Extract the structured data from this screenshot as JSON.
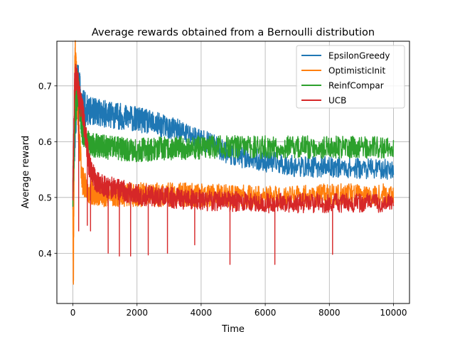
{
  "chart_data": {
    "type": "line",
    "title": "Average rewards obtained from a Bernoulli distribution",
    "xlabel": "Time",
    "ylabel": "Average reward",
    "xlim": [
      -500,
      10500
    ],
    "ylim": [
      0.31,
      0.78
    ],
    "xticks": [
      0,
      2000,
      4000,
      6000,
      8000,
      10000
    ],
    "xtick_labels": [
      "0",
      "2000",
      "4000",
      "6000",
      "8000",
      "10000"
    ],
    "yticks": [
      0.4,
      0.5,
      0.6,
      0.7
    ],
    "ytick_labels": [
      "0.4",
      "0.5",
      "0.6",
      "0.7"
    ],
    "grid": true,
    "legend_position": "top-right",
    "series": [
      {
        "name": "EpsilonGreedy",
        "color": "#1f77b4",
        "mean": [
          [
            0,
            0.52
          ],
          [
            60,
            0.62
          ],
          [
            150,
            0.71
          ],
          [
            300,
            0.66
          ],
          [
            500,
            0.655
          ],
          [
            1000,
            0.65
          ],
          [
            1500,
            0.645
          ],
          [
            2000,
            0.64
          ],
          [
            3000,
            0.625
          ],
          [
            4000,
            0.605
          ],
          [
            5000,
            0.575
          ],
          [
            6000,
            0.565
          ],
          [
            7000,
            0.555
          ],
          [
            8000,
            0.555
          ],
          [
            9000,
            0.552
          ],
          [
            10000,
            0.55
          ]
        ],
        "noise": [
          [
            0,
            0.05
          ],
          [
            500,
            0.025
          ],
          [
            4000,
            0.02
          ],
          [
            10000,
            0.018
          ]
        ],
        "dips": [],
        "seed": 11
      },
      {
        "name": "OptimisticInit",
        "color": "#ff7f0e",
        "mean": [
          [
            0,
            0.48
          ],
          [
            15,
            0.34
          ],
          [
            30,
            0.5
          ],
          [
            60,
            0.76
          ],
          [
            120,
            0.7
          ],
          [
            200,
            0.6
          ],
          [
            300,
            0.53
          ],
          [
            500,
            0.51
          ],
          [
            1000,
            0.505
          ],
          [
            2000,
            0.505
          ],
          [
            4000,
            0.505
          ],
          [
            6000,
            0.5
          ],
          [
            8000,
            0.505
          ],
          [
            10000,
            0.505
          ]
        ],
        "noise": [
          [
            0,
            0.04
          ],
          [
            400,
            0.022
          ],
          [
            10000,
            0.02
          ]
        ],
        "dips": [],
        "seed": 23
      },
      {
        "name": "ReinfCompar",
        "color": "#2ca02c",
        "mean": [
          [
            0,
            0.52
          ],
          [
            60,
            0.64
          ],
          [
            150,
            0.7
          ],
          [
            300,
            0.62
          ],
          [
            500,
            0.595
          ],
          [
            1000,
            0.59
          ],
          [
            2000,
            0.585
          ],
          [
            4000,
            0.59
          ],
          [
            6000,
            0.59
          ],
          [
            8000,
            0.59
          ],
          [
            10000,
            0.59
          ]
        ],
        "noise": [
          [
            0,
            0.04
          ],
          [
            400,
            0.022
          ],
          [
            10000,
            0.02
          ]
        ],
        "dips": [],
        "seed": 37
      },
      {
        "name": "UCB",
        "color": "#d62728",
        "mean": [
          [
            0,
            0.52
          ],
          [
            50,
            0.7
          ],
          [
            120,
            0.72
          ],
          [
            200,
            0.68
          ],
          [
            300,
            0.655
          ],
          [
            400,
            0.61
          ],
          [
            500,
            0.56
          ],
          [
            700,
            0.53
          ],
          [
            1000,
            0.52
          ],
          [
            2000,
            0.505
          ],
          [
            4000,
            0.495
          ],
          [
            6000,
            0.49
          ],
          [
            8000,
            0.49
          ],
          [
            10000,
            0.49
          ]
        ],
        "noise": [
          [
            0,
            0.03
          ],
          [
            600,
            0.02
          ],
          [
            10000,
            0.017
          ]
        ],
        "dips": [
          [
            180,
            0.44
          ],
          [
            450,
            0.45
          ],
          [
            550,
            0.44
          ],
          [
            1100,
            0.4
          ],
          [
            1450,
            0.395
          ],
          [
            1800,
            0.395
          ],
          [
            2350,
            0.397
          ],
          [
            2950,
            0.4
          ],
          [
            3800,
            0.415
          ],
          [
            4900,
            0.38
          ],
          [
            6300,
            0.38
          ],
          [
            8100,
            0.398
          ]
        ],
        "seed": 53
      }
    ]
  }
}
